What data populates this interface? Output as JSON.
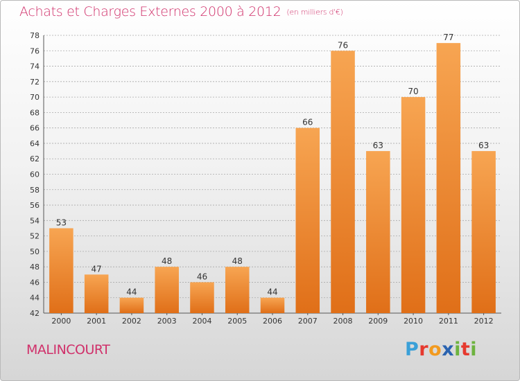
{
  "title": "Achats et Charges Externes 2000 à 2012",
  "unit_label": "(en milliers d'€)",
  "commune": "MALINCOURT",
  "logo": {
    "text": "Proxiti",
    "letters": [
      {
        "ch": "P",
        "color": "#3aa0d8"
      },
      {
        "ch": "r",
        "color": "#e6392e"
      },
      {
        "ch": "o",
        "color": "#f29a1f"
      },
      {
        "ch": "x",
        "color": "#2a63b0"
      },
      {
        "ch": "i",
        "color": "#6db33f"
      },
      {
        "ch": "t",
        "color": "#e6392e"
      },
      {
        "ch": "i",
        "color": "#6db33f"
      }
    ]
  },
  "colors": {
    "accent": "#d0306a",
    "bar_top": "#f7a552",
    "bar_bottom": "#e06f18",
    "grid": "#a9a9a9"
  },
  "chart_data": {
    "type": "bar",
    "title": "Achats et Charges Externes 2000 à 2012",
    "unit": "(en milliers d'€)",
    "categories": [
      "2000",
      "2001",
      "2002",
      "2003",
      "2004",
      "2005",
      "2006",
      "2007",
      "2008",
      "2009",
      "2010",
      "2011",
      "2012"
    ],
    "values": [
      53,
      47,
      44,
      48,
      46,
      48,
      44,
      66,
      76,
      63,
      70,
      77,
      63
    ],
    "ylim": [
      42,
      78
    ],
    "yticks": [
      42,
      44,
      46,
      48,
      50,
      52,
      54,
      56,
      58,
      60,
      62,
      64,
      66,
      68,
      70,
      72,
      74,
      76,
      78
    ],
    "grid": true,
    "data_labels": true
  }
}
